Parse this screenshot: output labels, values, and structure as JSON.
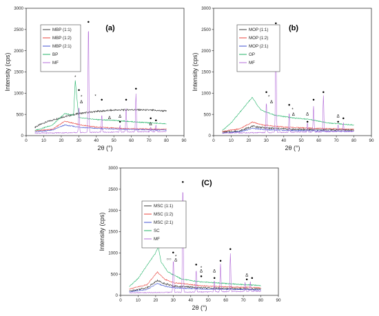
{
  "series_colors": [
    "#3a3a3a",
    "#e8403a",
    "#3c4fd0",
    "#1fb266",
    "#b36bd8"
  ],
  "chart_data": [
    {
      "type": "line",
      "panel_label": "(a)",
      "xlabel": "2θ (°)",
      "ylabel": "Intensity (cps)",
      "xlim": [
        0,
        90
      ],
      "ylim": [
        0,
        3000
      ],
      "xticks": [
        0,
        10,
        20,
        30,
        40,
        50,
        60,
        70,
        80,
        90
      ],
      "yticks": [
        0,
        500,
        1000,
        1500,
        2000,
        2500,
        3000
      ],
      "legend_position": "top-left",
      "series": [
        {
          "name": "MBP (1:1)",
          "x": [
            5,
            10,
            20,
            30,
            40,
            50,
            60,
            70,
            80
          ],
          "y": [
            200,
            300,
            430,
            520,
            570,
            600,
            610,
            600,
            580
          ]
        },
        {
          "name": "MBP (1:2)",
          "x": [
            5,
            15,
            22,
            30,
            40,
            55,
            65,
            80
          ],
          "y": [
            110,
            150,
            340,
            260,
            200,
            170,
            160,
            150
          ]
        },
        {
          "name": "MBP (2:1)",
          "x": [
            5,
            15,
            22,
            30,
            40,
            55,
            65,
            80
          ],
          "y": [
            90,
            130,
            250,
            200,
            170,
            150,
            140,
            130
          ]
        },
        {
          "name": "BP",
          "x": [
            5,
            15,
            22,
            27,
            28,
            30,
            40,
            50,
            60,
            70,
            80
          ],
          "y": [
            120,
            250,
            520,
            480,
            1300,
            420,
            380,
            360,
            330,
            300,
            280
          ]
        },
        {
          "name": "MF",
          "x": [
            5,
            18,
            28,
            30.1,
            35.5,
            43.1,
            53.5,
            57,
            62.6,
            71,
            74,
            80
          ],
          "y": [
            60,
            70,
            90,
            700,
            2650,
            500,
            250,
            650,
            1000,
            200,
            250,
            100
          ]
        }
      ],
      "annotations": [
        {
          "symbol": "●",
          "x": 30.1,
          "y": 1050
        },
        {
          "symbol": "●",
          "x": 35.5,
          "y": 2650
        },
        {
          "symbol": "●",
          "x": 43.1,
          "y": 820
        },
        {
          "symbol": "●",
          "x": 57.0,
          "y": 820
        },
        {
          "symbol": "●",
          "x": 62.6,
          "y": 1080
        },
        {
          "symbol": "●",
          "x": 53.5,
          "y": 300
        },
        {
          "symbol": "●",
          "x": 71.0,
          "y": 380
        },
        {
          "symbol": "●",
          "x": 74.0,
          "y": 330
        },
        {
          "symbol": "*",
          "x": 28.0,
          "y": 1350
        },
        {
          "symbol": "*",
          "x": 31.5,
          "y": 880
        },
        {
          "symbol": "*",
          "x": 39.5,
          "y": 900
        },
        {
          "symbol": "Δ",
          "x": 31.5,
          "y": 760
        },
        {
          "symbol": "Δ",
          "x": 47.5,
          "y": 390
        },
        {
          "symbol": "Δ",
          "x": 53.5,
          "y": 420
        },
        {
          "symbol": "Δ",
          "x": 71.0,
          "y": 240
        }
      ]
    },
    {
      "type": "line",
      "panel_label": "(b)",
      "xlabel": "2θ (°)",
      "ylabel": "Intensity (cps)",
      "xlim": [
        0,
        90
      ],
      "ylim": [
        0,
        3000
      ],
      "xticks": [
        0,
        10,
        20,
        30,
        40,
        50,
        60,
        70,
        80,
        90
      ],
      "yticks": [
        0,
        500,
        1000,
        1500,
        2000,
        2500,
        3000
      ],
      "legend_position": "top-left",
      "series": [
        {
          "name": "MOP (1:1)",
          "x": [
            5,
            15,
            22,
            30,
            45,
            60,
            80
          ],
          "y": [
            80,
            110,
            220,
            180,
            150,
            140,
            130
          ]
        },
        {
          "name": "MOP (1:2)",
          "x": [
            5,
            15,
            22,
            28,
            40,
            60,
            80
          ],
          "y": [
            100,
            160,
            320,
            250,
            200,
            170,
            150
          ]
        },
        {
          "name": "MOP (2:1)",
          "x": [
            5,
            15,
            22,
            30,
            45,
            60,
            80
          ],
          "y": [
            60,
            90,
            170,
            140,
            120,
            110,
            100
          ]
        },
        {
          "name": "OP",
          "x": [
            5,
            10,
            15,
            22,
            27,
            35,
            45,
            55,
            65,
            80
          ],
          "y": [
            120,
            300,
            550,
            900,
            600,
            480,
            420,
            380,
            300,
            250
          ]
        },
        {
          "name": "MF",
          "x": [
            5,
            18,
            28,
            30.1,
            35.5,
            43.1,
            53.5,
            57,
            62.6,
            71,
            74,
            80
          ],
          "y": [
            60,
            70,
            90,
            800,
            2580,
            550,
            300,
            700,
            950,
            250,
            300,
            120
          ]
        }
      ],
      "annotations": [
        {
          "symbol": "●",
          "x": 30.1,
          "y": 1000
        },
        {
          "symbol": "●",
          "x": 35.5,
          "y": 2620
        },
        {
          "symbol": "●",
          "x": 43.1,
          "y": 700
        },
        {
          "symbol": "●",
          "x": 57.0,
          "y": 820
        },
        {
          "symbol": "●",
          "x": 62.6,
          "y": 1000
        },
        {
          "symbol": "●",
          "x": 53.5,
          "y": 300
        },
        {
          "symbol": "●",
          "x": 71.0,
          "y": 300
        },
        {
          "symbol": "●",
          "x": 74.0,
          "y": 380
        },
        {
          "symbol": "*",
          "x": 31.5,
          "y": 880
        },
        {
          "symbol": "*",
          "x": 45.0,
          "y": 580
        },
        {
          "symbol": "Δ",
          "x": 33.0,
          "y": 760
        },
        {
          "symbol": "Δ",
          "x": 45.5,
          "y": 470
        },
        {
          "symbol": "Δ",
          "x": 53.5,
          "y": 480
        },
        {
          "symbol": "Δ",
          "x": 71.0,
          "y": 430
        }
      ]
    },
    {
      "type": "line",
      "panel_label": "(C)",
      "xlabel": "2θ (°)",
      "ylabel": "Intensity (cps)",
      "xlim": [
        0,
        90
      ],
      "ylim": [
        0,
        3000
      ],
      "xticks": [
        0,
        10,
        20,
        30,
        40,
        50,
        60,
        70,
        80,
        90
      ],
      "yticks": [
        0,
        500,
        1000,
        1500,
        2000,
        2500,
        3000
      ],
      "legend_position": "top-left",
      "series": [
        {
          "name": "MSC (1:1)",
          "x": [
            5,
            15,
            21,
            25,
            30,
            45,
            60,
            80
          ],
          "y": [
            100,
            180,
            350,
            280,
            220,
            180,
            160,
            150
          ]
        },
        {
          "name": "MSC (1:2)",
          "x": [
            5,
            15,
            21,
            25,
            30,
            45,
            60,
            80
          ],
          "y": [
            150,
            250,
            550,
            380,
            300,
            230,
            200,
            180
          ]
        },
        {
          "name": "MSC (2:1)",
          "x": [
            5,
            15,
            21,
            25,
            30,
            45,
            60,
            80
          ],
          "y": [
            80,
            140,
            280,
            220,
            180,
            150,
            140,
            130
          ]
        },
        {
          "name": "SC",
          "x": [
            5,
            10,
            15,
            20,
            21.5,
            23,
            27,
            35,
            45,
            60,
            80
          ],
          "y": [
            200,
            400,
            700,
            1000,
            1150,
            800,
            550,
            380,
            320,
            280,
            230
          ]
        },
        {
          "name": "MF",
          "x": [
            5,
            18,
            28,
            30.1,
            35.5,
            43.1,
            53.5,
            57,
            62.6,
            71,
            74,
            80
          ],
          "y": [
            60,
            70,
            90,
            850,
            2620,
            600,
            350,
            750,
            1000,
            300,
            320,
            100
          ]
        }
      ],
      "annotations": [
        {
          "symbol": "●",
          "x": 30.0,
          "y": 980
        },
        {
          "symbol": "●",
          "x": 35.5,
          "y": 2640
        },
        {
          "symbol": "●",
          "x": 43.1,
          "y": 700
        },
        {
          "symbol": "●",
          "x": 57.0,
          "y": 790
        },
        {
          "symbol": "●",
          "x": 62.6,
          "y": 1060
        },
        {
          "symbol": "●",
          "x": 46.0,
          "y": 420
        },
        {
          "symbol": "●",
          "x": 53.5,
          "y": 380
        },
        {
          "symbol": "●",
          "x": 72.0,
          "y": 350
        },
        {
          "symbol": "●",
          "x": 75.0,
          "y": 380
        },
        {
          "symbol": "*",
          "x": 31.5,
          "y": 880
        },
        {
          "symbol": "*",
          "x": 46.0,
          "y": 620
        },
        {
          "symbol": "Δ",
          "x": 31.5,
          "y": 800
        },
        {
          "symbol": "Δ",
          "x": 46.0,
          "y": 540
        },
        {
          "symbol": "Δ",
          "x": 53.5,
          "y": 540
        },
        {
          "symbol": "Δ",
          "x": 72.0,
          "y": 450
        },
        {
          "symbol": "○○",
          "x": 27.5,
          "y": 830
        }
      ]
    }
  ]
}
